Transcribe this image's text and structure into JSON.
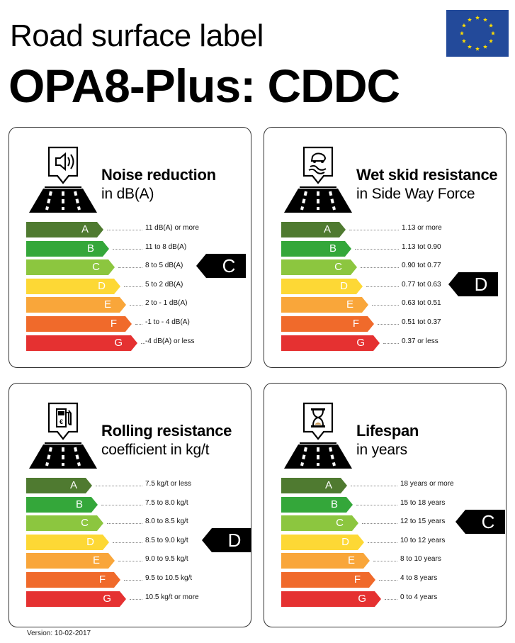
{
  "header": {
    "subtitle": "Road surface label",
    "title": "OPA8-Plus: CDDC"
  },
  "flag": {
    "name": "eu-flag",
    "background": "#234a9a",
    "star_color": "#ffdd00"
  },
  "classes": [
    "A",
    "B",
    "C",
    "D",
    "E",
    "F",
    "G"
  ],
  "class_colors": [
    "#4f7a30",
    "#34a73a",
    "#8cc63f",
    "#fdd835",
    "#f9a63a",
    "#f06a2b",
    "#e53131"
  ],
  "panels": [
    {
      "title": "Noise reduction",
      "unit": "in dB(A)",
      "icon": "speaker-icon",
      "rating": "C",
      "ranges": [
        "11 dB(A) or more",
        "11 to 8 dB(A)",
        "8 to 5 dB(A)",
        "5 to 2 dB(A)",
        "2 to - 1 dB(A)",
        "-1 to - 4 dB(A)",
        "-4 dB(A) or less"
      ]
    },
    {
      "title": "Wet skid resistance",
      "unit": "in Side Way Force",
      "icon": "skidding-car-icon",
      "rating": "D",
      "ranges": [
        "1.13 or more",
        "1.13 tot 0.90",
        "0.90 tot 0.77",
        "0.77 tot 0.63",
        "0.63 tot 0.51",
        "0.51 tot 0.37",
        "0.37 or less"
      ]
    },
    {
      "title": "Rolling resistance",
      "unit": "coefficient in kg/t",
      "icon": "fuel-pump-icon",
      "rating": "D",
      "ranges": [
        "7.5 kg/t or less",
        "7.5 to 8.0 kg/t",
        "8.0 to 8.5 kg/t",
        "8.5 to 9.0 kg/t",
        "9.0 to 9.5 kg/t",
        "9.5 to 10.5 kg/t",
        "10.5 kg/t or more"
      ]
    },
    {
      "title": "Lifespan",
      "unit": "in years",
      "icon": "hourglass-icon",
      "rating": "C",
      "ranges": [
        "18 years or more",
        "15 to 18 years",
        "12 to 15 years",
        "10 to 12 years",
        "8 to 10 years",
        "4 to 8 years",
        "0 to 4 years"
      ]
    }
  ],
  "footer": {
    "version": "Version: 10-02-2017"
  }
}
